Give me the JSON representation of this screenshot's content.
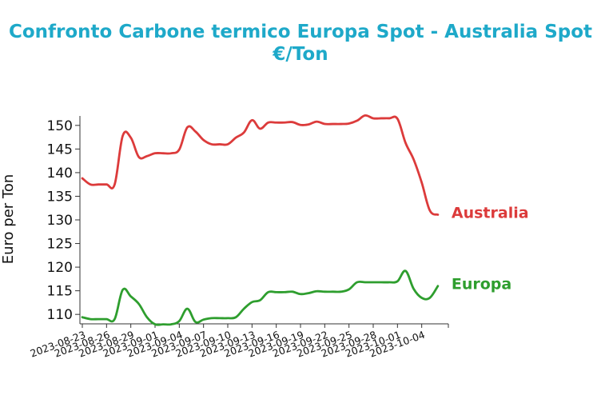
{
  "colors": {
    "title": "#1ea9c9",
    "australia": "#dc3b3b",
    "europa": "#2e9e2e",
    "axis": "#333333"
  },
  "chart_data": {
    "type": "line",
    "title": "Confronto Carbone termico Europa Spot - Australia Spot",
    "subtitle": "€/Ton",
    "ylabel": "Euro per Ton",
    "xlabel": "",
    "x_start": "2023-08-23",
    "x_end": "2023-10-07",
    "ylim": [
      108,
      152
    ],
    "yticks": [
      110,
      115,
      120,
      125,
      130,
      135,
      140,
      145,
      150
    ],
    "xticks": [
      "2023-08-23",
      "2023-08-26",
      "2023-08-29",
      "2023-09-01",
      "2023-09-04",
      "2023-09-07",
      "2023-09-10",
      "2023-09-13",
      "2023-09-16",
      "2023-09-19",
      "2023-09-22",
      "2023-09-25",
      "2023-09-28",
      "2023-10-01",
      "2023-10-04"
    ],
    "grid": false,
    "series": [
      {
        "name": "Australia",
        "color": "#dc3b3b",
        "points": [
          [
            "2023-08-23",
            138.8
          ],
          [
            "2023-08-24",
            137.5
          ],
          [
            "2023-08-25",
            137.5
          ],
          [
            "2023-08-26",
            137.5
          ],
          [
            "2023-08-27",
            137.5
          ],
          [
            "2023-08-28",
            147.8
          ],
          [
            "2023-08-29",
            147.4
          ],
          [
            "2023-08-30",
            143.3
          ],
          [
            "2023-08-31",
            143.5
          ],
          [
            "2023-09-01",
            144.1
          ],
          [
            "2023-09-02",
            144.1
          ],
          [
            "2023-09-03",
            144.1
          ],
          [
            "2023-09-04",
            144.9
          ],
          [
            "2023-09-05",
            149.6
          ],
          [
            "2023-09-06",
            148.7
          ],
          [
            "2023-09-07",
            146.9
          ],
          [
            "2023-09-08",
            146.0
          ],
          [
            "2023-09-09",
            146.0
          ],
          [
            "2023-09-10",
            146.0
          ],
          [
            "2023-09-11",
            147.4
          ],
          [
            "2023-09-12",
            148.5
          ],
          [
            "2023-09-13",
            151.1
          ],
          [
            "2023-09-14",
            149.3
          ],
          [
            "2023-09-15",
            150.6
          ],
          [
            "2023-09-16",
            150.6
          ],
          [
            "2023-09-17",
            150.6
          ],
          [
            "2023-09-18",
            150.7
          ],
          [
            "2023-09-19",
            150.1
          ],
          [
            "2023-09-20",
            150.2
          ],
          [
            "2023-09-21",
            150.8
          ],
          [
            "2023-09-22",
            150.3
          ],
          [
            "2023-09-23",
            150.3
          ],
          [
            "2023-09-24",
            150.3
          ],
          [
            "2023-09-25",
            150.4
          ],
          [
            "2023-09-26",
            151.0
          ],
          [
            "2023-09-27",
            152.1
          ],
          [
            "2023-09-28",
            151.5
          ],
          [
            "2023-09-29",
            151.5
          ],
          [
            "2023-09-30",
            151.5
          ],
          [
            "2023-10-01",
            151.4
          ],
          [
            "2023-10-02",
            146.3
          ],
          [
            "2023-10-03",
            142.8
          ],
          [
            "2023-10-04",
            137.9
          ],
          [
            "2023-10-05",
            132.0
          ],
          [
            "2023-10-06",
            131.1
          ]
        ]
      },
      {
        "name": "Europa",
        "color": "#2e9e2e",
        "points": [
          [
            "2023-08-23",
            109.4
          ],
          [
            "2023-08-24",
            109.0
          ],
          [
            "2023-08-25",
            109.0
          ],
          [
            "2023-08-26",
            109.0
          ],
          [
            "2023-08-27",
            109.0
          ],
          [
            "2023-08-28",
            115.2
          ],
          [
            "2023-08-29",
            113.8
          ],
          [
            "2023-08-30",
            112.2
          ],
          [
            "2023-08-31",
            109.4
          ],
          [
            "2023-09-01",
            107.9
          ],
          [
            "2023-09-02",
            107.9
          ],
          [
            "2023-09-03",
            107.9
          ],
          [
            "2023-09-04",
            108.6
          ],
          [
            "2023-09-05",
            111.2
          ],
          [
            "2023-09-06",
            108.4
          ],
          [
            "2023-09-07",
            108.9
          ],
          [
            "2023-09-08",
            109.2
          ],
          [
            "2023-09-09",
            109.2
          ],
          [
            "2023-09-10",
            109.2
          ],
          [
            "2023-09-11",
            109.4
          ],
          [
            "2023-09-12",
            111.2
          ],
          [
            "2023-09-13",
            112.6
          ],
          [
            "2023-09-14",
            113.0
          ],
          [
            "2023-09-15",
            114.7
          ],
          [
            "2023-09-16",
            114.7
          ],
          [
            "2023-09-17",
            114.7
          ],
          [
            "2023-09-18",
            114.8
          ],
          [
            "2023-09-19",
            114.3
          ],
          [
            "2023-09-20",
            114.5
          ],
          [
            "2023-09-21",
            114.9
          ],
          [
            "2023-09-22",
            114.8
          ],
          [
            "2023-09-23",
            114.8
          ],
          [
            "2023-09-24",
            114.8
          ],
          [
            "2023-09-25",
            115.3
          ],
          [
            "2023-09-26",
            116.8
          ],
          [
            "2023-09-27",
            116.8
          ],
          [
            "2023-09-28",
            116.8
          ],
          [
            "2023-09-29",
            116.8
          ],
          [
            "2023-09-30",
            116.8
          ],
          [
            "2023-10-01",
            117.0
          ],
          [
            "2023-10-02",
            119.2
          ],
          [
            "2023-10-03",
            115.4
          ],
          [
            "2023-10-04",
            113.5
          ],
          [
            "2023-10-05",
            113.5
          ],
          [
            "2023-10-06",
            116.0
          ]
        ]
      }
    ]
  }
}
